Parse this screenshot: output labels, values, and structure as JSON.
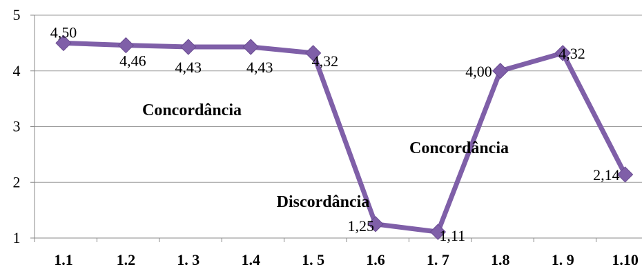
{
  "chart_data": {
    "type": "line",
    "categories": [
      "1.1",
      "1.2",
      "1. 3",
      "1.4",
      "1. 5",
      "1.6",
      "1. 7",
      "1.8",
      "1. 9",
      "1.10"
    ],
    "series": [
      {
        "values": [
          4.5,
          4.46,
          4.43,
          4.43,
          4.32,
          1.25,
          1.11,
          4.0,
          4.32,
          2.14
        ],
        "data_labels": [
          "4,50",
          "4,46",
          "4,43",
          "4,43",
          "4,32",
          "1,25",
          "1,11",
          "4,00",
          "4,32",
          "2,14"
        ],
        "color": "#7F5FA8",
        "marker": "diamond"
      }
    ],
    "ylim": [
      1,
      5
    ],
    "yticks": [
      "1",
      "2",
      "3",
      "4",
      "5"
    ],
    "grid": "horizontal",
    "annotations": [
      "Concordância",
      "Discordância",
      "Concordância"
    ],
    "title": "",
    "xlabel": "",
    "ylabel": ""
  }
}
